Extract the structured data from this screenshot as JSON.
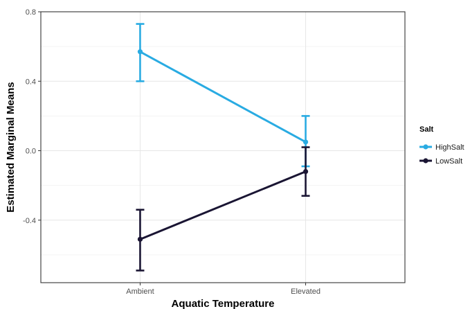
{
  "chart_data": {
    "type": "line",
    "xlabel": "Aquatic Temperature",
    "ylabel": "Estimated Marginal Means",
    "categories": [
      "Ambient",
      "Elevated"
    ],
    "ylim": [
      -0.76,
      0.8
    ],
    "yticks": [
      -0.4,
      0.0,
      0.4,
      0.8
    ],
    "ytick_labels": [
      "-0.4",
      "0.0",
      "0.4",
      "0.8"
    ],
    "grid": true,
    "legend": {
      "title": "Salt",
      "position": "right"
    },
    "series": [
      {
        "name": "HighSalt",
        "color": "#29abe2",
        "values": [
          0.57,
          0.05
        ],
        "lower": [
          0.4,
          -0.09
        ],
        "upper": [
          0.73,
          0.2
        ]
      },
      {
        "name": "LowSalt",
        "color": "#1a1533",
        "values": [
          -0.51,
          -0.12
        ],
        "lower": [
          -0.69,
          -0.26
        ],
        "upper": [
          -0.34,
          0.02
        ]
      }
    ]
  }
}
